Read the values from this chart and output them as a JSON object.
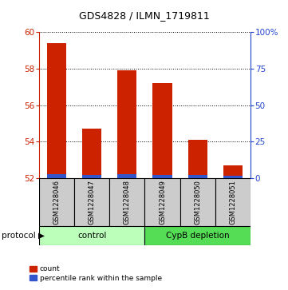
{
  "title": "GDS4828 / ILMN_1719811",
  "samples": [
    "GSM1228046",
    "GSM1228047",
    "GSM1228048",
    "GSM1228049",
    "GSM1228050",
    "GSM1228051"
  ],
  "red_values": [
    59.4,
    54.7,
    57.9,
    57.2,
    54.1,
    52.7
  ],
  "blue_values": [
    52.25,
    52.18,
    52.25,
    52.2,
    52.18,
    52.12
  ],
  "baseline": 52,
  "ylim": [
    52,
    60
  ],
  "yticks_left": [
    52,
    54,
    56,
    58,
    60
  ],
  "yticks_right": [
    0,
    25,
    50,
    75,
    100
  ],
  "right_ylim": [
    0,
    100
  ],
  "bar_width": 0.55,
  "red_color": "#cc2200",
  "blue_color": "#3355cc",
  "ctrl_color": "#bbffbb",
  "depl_color": "#55dd55",
  "sample_box_color": "#cccccc",
  "legend_labels": [
    "count",
    "percentile rank within the sample"
  ],
  "left_tick_color": "#cc2200",
  "right_tick_color": "#2244cc",
  "grid_ticks": [
    54,
    56,
    58,
    60
  ]
}
